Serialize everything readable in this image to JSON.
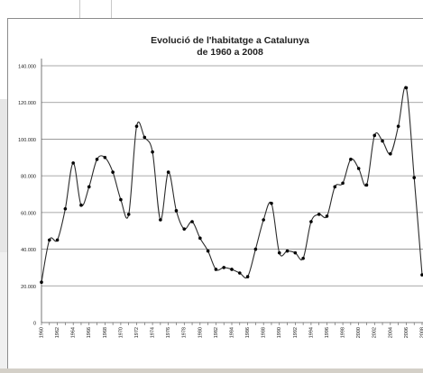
{
  "chart_data": {
    "type": "line",
    "title": [
      "Evolució de l'habitatge a Catalunya",
      "de 1960 a 2008"
    ],
    "xlabel": "",
    "ylabel": "",
    "ylim": [
      0,
      140000
    ],
    "yticks": [
      0,
      20000,
      40000,
      60000,
      80000,
      100000,
      120000,
      140000
    ],
    "ytick_labels": [
      "0",
      "20.000",
      "40.000",
      "60.000",
      "80.000",
      "100.000",
      "120.000",
      "140.000"
    ],
    "xtick_labels": [
      "1960",
      "1962",
      "1964",
      "1966",
      "1968",
      "1970",
      "1972",
      "1974",
      "1976",
      "1978",
      "1980",
      "1982",
      "1984",
      "1986",
      "1988",
      "1990",
      "1992",
      "1994",
      "1996",
      "1998",
      "2000",
      "2002",
      "2004",
      "2006",
      "2008"
    ],
    "grid": true,
    "series": [
      {
        "x": [
          1960,
          1961,
          1962,
          1963,
          1964,
          1965,
          1966,
          1967,
          1968,
          1969,
          1970,
          1971,
          1972,
          1973,
          1974,
          1975,
          1976,
          1977,
          1978,
          1979,
          1980,
          1981,
          1982,
          1983,
          1984,
          1985,
          1986,
          1987,
          1988,
          1989,
          1990,
          1991,
          1992,
          1993,
          1994,
          1995,
          1996,
          1997,
          1998,
          1999,
          2000,
          2001,
          2002,
          2003,
          2004,
          2005,
          2006,
          2007,
          2008
        ],
        "values": [
          22000,
          45000,
          45000,
          62000,
          87000,
          64000,
          74000,
          89000,
          90000,
          82000,
          67000,
          59000,
          107000,
          101000,
          93000,
          56000,
          82000,
          61000,
          51000,
          55000,
          46000,
          39000,
          29000,
          30000,
          29000,
          27000,
          25000,
          40000,
          56000,
          65000,
          38000,
          39000,
          38000,
          35000,
          55000,
          59000,
          58000,
          74000,
          76000,
          89000,
          84000,
          75000,
          102000,
          99000,
          92000,
          107000,
          128000,
          79000,
          26000
        ]
      }
    ],
    "style": {
      "line_color": "#2b2b2b",
      "marker_color": "#000000",
      "grid_color": "#8c8c8c",
      "text_color": "#222222"
    }
  }
}
